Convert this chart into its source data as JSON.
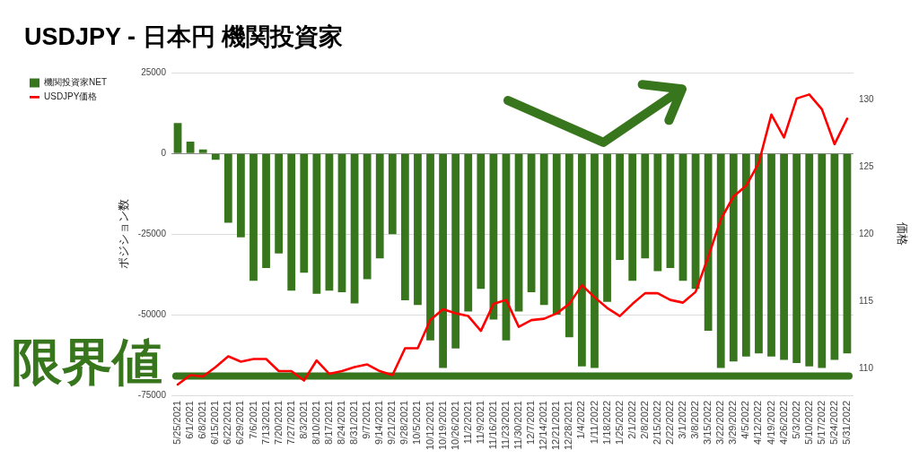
{
  "chart_data": {
    "type": "bar",
    "title": "USDJPY - 日本円 機関投資家",
    "ylabel": "ポジション数",
    "y2label": "価格",
    "categories": [
      "5/25/2021",
      "6/1/2021",
      "6/8/2021",
      "6/15/2021",
      "6/22/2021",
      "6/29/2021",
      "7/6/2021",
      "7/13/2021",
      "7/20/2021",
      "7/27/2021",
      "8/3/2021",
      "8/10/2021",
      "8/17/2021",
      "8/24/2021",
      "8/31/2021",
      "9/7/2021",
      "9/14/2021",
      "9/21/2021",
      "9/28/2021",
      "10/5/2021",
      "10/12/2021",
      "10/19/2021",
      "10/26/2021",
      "11/2/2021",
      "11/9/2021",
      "11/16/2021",
      "11/23/2021",
      "11/30/2021",
      "12/7/2021",
      "12/14/2021",
      "12/21/2021",
      "12/28/2021",
      "1/4/2022",
      "1/11/2022",
      "1/18/2022",
      "1/25/2022",
      "2/1/2022",
      "2/8/2022",
      "2/15/2022",
      "2/22/2022",
      "3/1/2022",
      "3/8/2022",
      "3/15/2022",
      "3/22/2022",
      "3/29/2022",
      "4/5/2022",
      "4/12/2022",
      "4/19/2022",
      "4/26/2022",
      "5/3/2022",
      "5/10/2022",
      "5/17/2022",
      "5/24/2022",
      "5/31/2022"
    ],
    "series": [
      {
        "name": "機関投資家NET",
        "color": "#38761d",
        "values": [
          9500,
          3700,
          1300,
          -1900,
          -21500,
          -26000,
          -39500,
          -35500,
          -31000,
          -42500,
          -37000,
          -43500,
          -42500,
          -43000,
          -46500,
          -39000,
          -32500,
          -25000,
          -45500,
          -47000,
          -58000,
          -66500,
          -60500,
          -49000,
          -42000,
          -51500,
          -58000,
          -49000,
          -43000,
          -47000,
          -50000,
          -57000,
          -66000,
          -66500,
          -46000,
          -33000,
          -39500,
          -32500,
          -36500,
          -35500,
          -39500,
          -42000,
          -55000,
          -66500,
          -64500,
          -63000,
          -62000,
          -63000,
          -64000,
          -65000,
          -66000,
          -66500,
          -64000,
          -62000
        ]
      },
      {
        "name": "USDJPY価格",
        "type": "line",
        "axis": "y2",
        "color": "#ff0000",
        "values": [
          108.8,
          109.5,
          109.4,
          110.1,
          110.9,
          110.5,
          110.7,
          110.7,
          109.8,
          109.8,
          109.1,
          110.6,
          109.6,
          109.8,
          110.1,
          110.3,
          109.8,
          109.5,
          111.5,
          111.5,
          113.6,
          114.4,
          114.1,
          113.9,
          112.8,
          114.8,
          115.1,
          113.1,
          113.6,
          113.7,
          114.1,
          114.8,
          116.2,
          115.3,
          114.5,
          113.9,
          114.8,
          115.6,
          115.6,
          115.1,
          114.9,
          115.7,
          118.3,
          121.1,
          122.8,
          123.6,
          125.3,
          128.9,
          127.2,
          130.1,
          130.4,
          129.3,
          126.7,
          128.6
        ]
      }
    ],
    "ylim": [
      -75000,
      25000
    ],
    "yticks": [
      -75000,
      -50000,
      -25000,
      0,
      25000
    ],
    "y2lim": [
      108,
      132
    ],
    "y2ticks": [
      110,
      115,
      120,
      125,
      130
    ],
    "ref_lines": [
      {
        "axis": "y",
        "value": -69000,
        "label": "限界値",
        "color": "#38761d"
      }
    ],
    "grid": "y",
    "legend": "left"
  }
}
